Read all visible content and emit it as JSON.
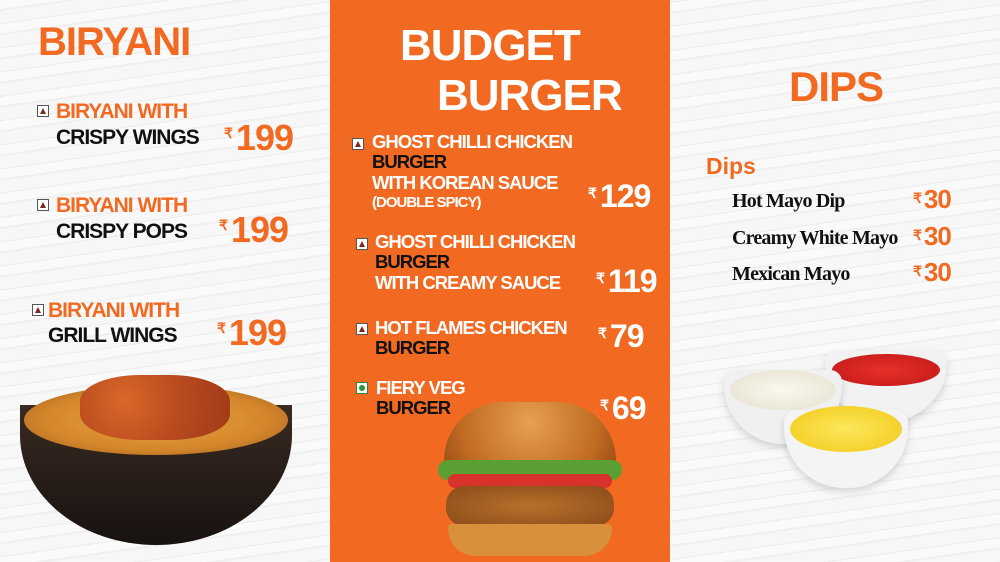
{
  "currency": "₹",
  "biryani": {
    "title": "BIRYANI",
    "items": [
      {
        "line1": "BIRYANI WITH",
        "line2": "CRISPY WINGS",
        "price": "199",
        "type": "non-veg"
      },
      {
        "line1": "BIRYANI WITH",
        "line2": "CRISPY POPS",
        "price": "199",
        "type": "non-veg"
      },
      {
        "line1": "BIRYANI WITH",
        "line2": "GRILL WINGS",
        "price": "199",
        "type": "non-veg"
      }
    ]
  },
  "burger": {
    "title1": "BUDGET",
    "title2": "BURGER",
    "items": [
      {
        "lines": [
          "GHOST CHILLI CHICKEN",
          "BURGER",
          "WITH KOREAN SAUCE",
          "(DOUBLE SPICY)"
        ],
        "price": "129",
        "type": "non-veg"
      },
      {
        "lines": [
          "GHOST CHILLI CHICKEN",
          "BURGER",
          "WITH CREAMY SAUCE"
        ],
        "price": "119",
        "type": "non-veg"
      },
      {
        "lines": [
          "HOT FLAMES CHICKEN",
          "BURGER"
        ],
        "price": "79",
        "type": "non-veg"
      },
      {
        "lines": [
          "FIERY VEG",
          "BURGER"
        ],
        "price": "69",
        "type": "veg"
      }
    ]
  },
  "dips": {
    "title": "DIPS",
    "subtitle": "Dips",
    "items": [
      {
        "name": "Hot Mayo Dip",
        "price": "30"
      },
      {
        "name": "Creamy White Mayo",
        "price": "30"
      },
      {
        "name": "Mexican Mayo",
        "price": "30"
      }
    ]
  },
  "colors": {
    "brand_orange": "#f26a21",
    "text_dark": "#111111",
    "white": "#ffffff"
  }
}
